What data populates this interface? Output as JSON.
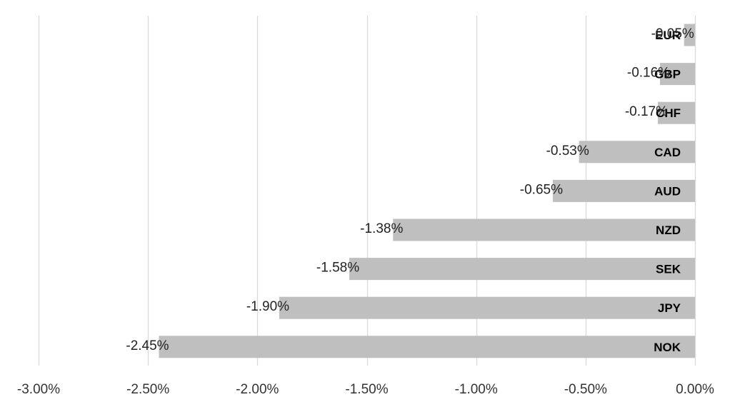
{
  "chart_data": {
    "type": "bar",
    "orientation": "horizontal",
    "categories": [
      "EUR",
      "GBP",
      "CHF",
      "CAD",
      "AUD",
      "NZD",
      "SEK",
      "JPY",
      "NOK"
    ],
    "values": [
      -0.05,
      -0.16,
      -0.17,
      -0.53,
      -0.65,
      -1.38,
      -1.58,
      -1.9,
      -2.45
    ],
    "data_labels": [
      "-0.05%",
      "-0.16%",
      "-0.17%",
      "-0.53%",
      "-0.65%",
      "-1.38%",
      "-1.58%",
      "-1.90%",
      "-2.45%"
    ],
    "x_ticks": [
      -3.0,
      -2.5,
      -2.0,
      -1.5,
      -1.0,
      -0.5,
      0.0
    ],
    "x_tick_labels": [
      "-3.00%",
      "-2.50%",
      "-2.00%",
      "-1.50%",
      "-1.00%",
      "-0.50%",
      "0.00%"
    ],
    "xlim": [
      -3.0,
      0.0
    ],
    "title": "",
    "xlabel": "",
    "ylabel": "",
    "grid": "vertical",
    "legend": "none",
    "colors": {
      "bar": "#bfbfbf",
      "grid": "#d9d9d9",
      "text": "#222222"
    }
  }
}
